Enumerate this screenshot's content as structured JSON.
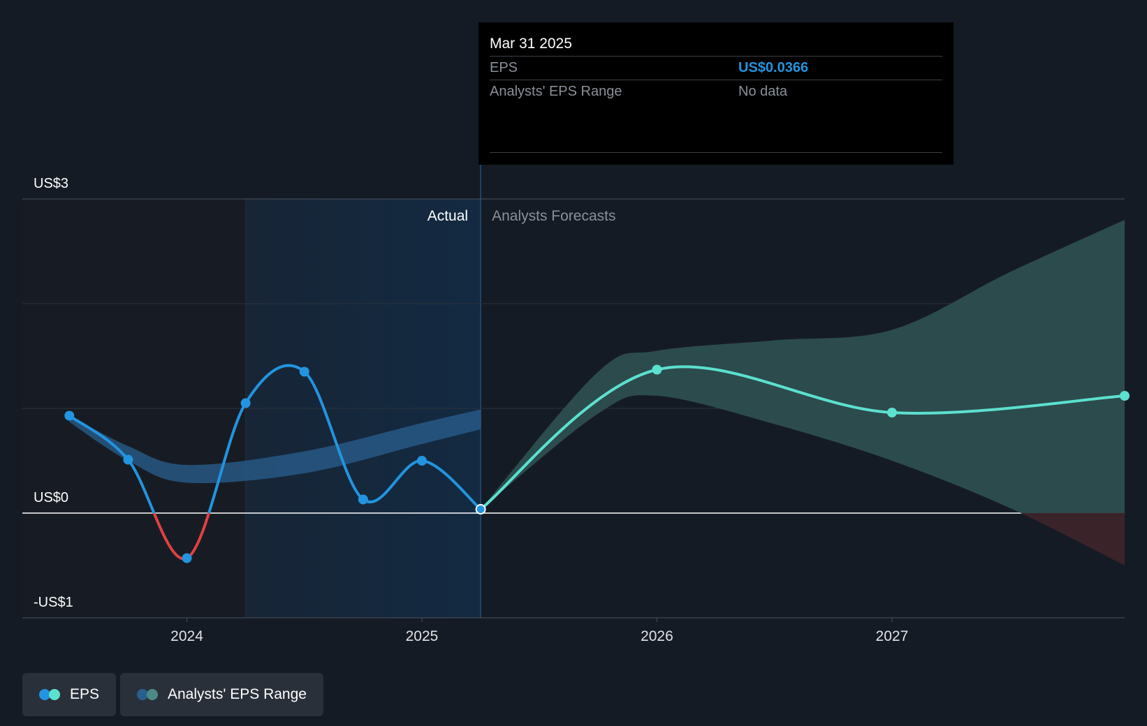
{
  "chart_data": {
    "type": "line",
    "y_ticks": [
      "US$3",
      "US$0",
      "-US$1"
    ],
    "x_ticks": [
      "2024",
      "2025",
      "2026",
      "2027"
    ],
    "x_tick_years": [
      2024,
      2025,
      2026,
      2027
    ],
    "section_labels": {
      "actual": "Actual",
      "forecast": "Analysts Forecasts"
    },
    "ylim": [
      -1,
      3
    ],
    "xlim": [
      2023.3,
      2027.99
    ],
    "past_shade_start": 2024.25,
    "divider_x": 2025.25,
    "grid": true,
    "series": [
      {
        "name": "EPS",
        "kind": "actual",
        "color": "#2394df",
        "negative_color": "#e0403f",
        "x": [
          2023.5,
          2023.75,
          2024.0,
          2024.25,
          2024.5,
          2024.75,
          2025.0,
          2025.25
        ],
        "y": [
          0.93,
          0.51,
          -0.43,
          1.05,
          1.35,
          0.13,
          0.5,
          0.0366
        ]
      },
      {
        "name": "EPS",
        "kind": "forecast",
        "color": "#5ce0cf",
        "x": [
          2025.25,
          2026.0,
          2027.0,
          2027.99
        ],
        "y": [
          0.0366,
          1.37,
          0.96,
          1.12
        ]
      }
    ],
    "past_range_band": {
      "color": "#2a5f8f",
      "x": [
        2023.5,
        2023.75,
        2024.0,
        2024.5,
        2025.0,
        2025.25
      ],
      "upper": [
        0.93,
        0.64,
        0.46,
        0.59,
        0.86,
        0.99
      ],
      "lower": [
        0.87,
        0.5,
        0.29,
        0.38,
        0.66,
        0.8
      ]
    },
    "forecast_range_band": {
      "color": "#2c4b4d",
      "negative_color": "#3b232a",
      "x": [
        2025.25,
        2025.75,
        2026.0,
        2026.5,
        2027.0,
        2027.5,
        2027.99
      ],
      "upper": [
        0.0366,
        1.35,
        1.55,
        1.65,
        1.75,
        2.3,
        2.8
      ],
      "lower": [
        0.0366,
        0.95,
        1.12,
        0.85,
        0.5,
        0.05,
        -0.5
      ]
    }
  },
  "tooltip": {
    "date": "Mar 31 2025",
    "eps_label": "EPS",
    "eps_value": "US$0.0366",
    "range_label": "Analysts' EPS Range",
    "range_value": "No data"
  },
  "legend": {
    "eps_label": "EPS",
    "range_label": "Analysts' EPS Range",
    "eps_colors": [
      "#2394df",
      "#5ce0cf"
    ],
    "range_colors": [
      "#2a5f8f",
      "#4d8a85"
    ]
  }
}
